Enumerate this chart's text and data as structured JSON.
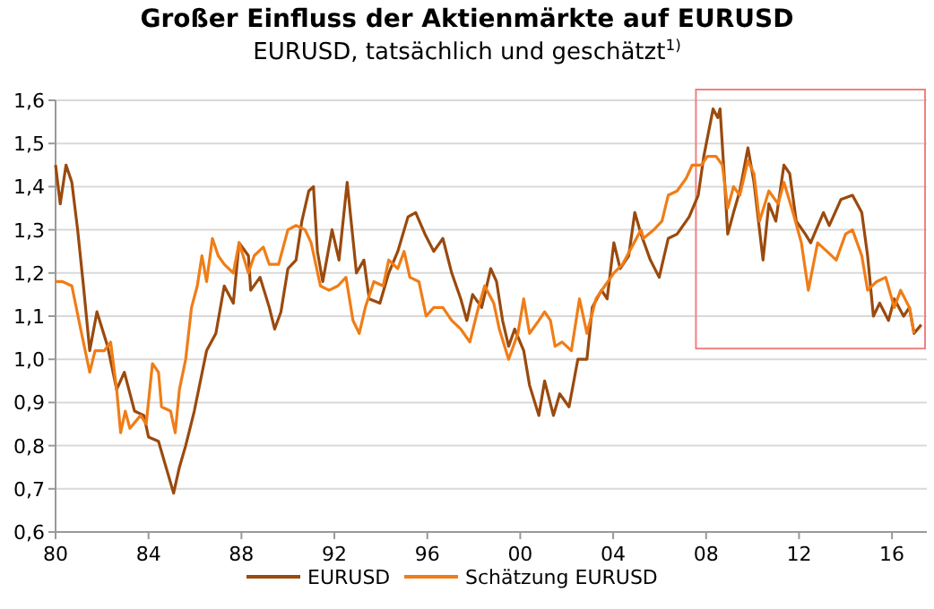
{
  "chart_data": {
    "type": "line",
    "title": "Großer Einfluss der Aktienmärkte auf EURUSD",
    "subtitle": "EURUSD, tatsächlich und geschätzt$^{1)}$",
    "xlim": [
      1980,
      2017.5
    ],
    "xticks": [
      {
        "value": 1980,
        "label": "80"
      },
      {
        "value": 1984,
        "label": "84"
      },
      {
        "value": 1988,
        "label": "88"
      },
      {
        "value": 1992,
        "label": "92"
      },
      {
        "value": 1996,
        "label": "96"
      },
      {
        "value": 2000,
        "label": "00"
      },
      {
        "value": 2004,
        "label": "04"
      },
      {
        "value": 2008,
        "label": "08"
      },
      {
        "value": 2012,
        "label": "12"
      },
      {
        "value": 2016,
        "label": "16"
      }
    ],
    "ylim": [
      0.6,
      1.6
    ],
    "yticks": [
      {
        "value": 0.6,
        "label": "0,6"
      },
      {
        "value": 0.7,
        "label": "0,7"
      },
      {
        "value": 0.8,
        "label": "0,8"
      },
      {
        "value": 0.9,
        "label": "0,9"
      },
      {
        "value": 1.0,
        "label": "1,0"
      },
      {
        "value": 1.1,
        "label": "1,1"
      },
      {
        "value": 1.2,
        "label": "1,2"
      },
      {
        "value": 1.3,
        "label": "1,3"
      },
      {
        "value": 1.4,
        "label": "1,4"
      },
      {
        "value": 1.5,
        "label": "1,5"
      },
      {
        "value": 1.6,
        "label": "1,6"
      }
    ],
    "grid": "y",
    "legend": "bottom",
    "line_style": "solid",
    "marker": "none",
    "series": [
      {
        "name": "EURUSD",
        "color": "#9a4a0e",
        "x": [
          1980,
          1980.2,
          1980.45,
          1980.7,
          1980.95,
          1981.2,
          1981.47,
          1981.78,
          1982.24,
          1982.63,
          1982.96,
          1983.4,
          1983.8,
          1984,
          1984.43,
          1984.7,
          1985.08,
          1985.33,
          1985.6,
          1985.97,
          1986.5,
          1986.9,
          1987.26,
          1987.65,
          1987.9,
          1988.3,
          1988.4,
          1988.8,
          1989.2,
          1989.43,
          1989.7,
          1990,
          1990.35,
          1990.6,
          1990.9,
          1991.1,
          1991.27,
          1991.5,
          1991.9,
          1992.2,
          1992.55,
          1992.95,
          1993.27,
          1993.5,
          1993.96,
          1994.34,
          1994.73,
          1995.17,
          1995.5,
          1995.9,
          1996.28,
          1996.67,
          1997.05,
          1997.44,
          1997.7,
          1997.95,
          1998.34,
          1998.73,
          1998.98,
          1999.24,
          1999.5,
          1999.76,
          2000.15,
          2000.4,
          2000.8,
          2001.05,
          2001.43,
          2001.7,
          2002.1,
          2002.48,
          2002.87,
          2003.1,
          2003.5,
          2003.74,
          2004.03,
          2004.3,
          2004.67,
          2004.93,
          2005.2,
          2005.6,
          2005.98,
          2006.37,
          2006.75,
          2007.27,
          2007.66,
          2007.9,
          2008.3,
          2008.5,
          2008.6,
          2008.8,
          2008.93,
          2009.18,
          2009.45,
          2009.8,
          2010.06,
          2010.45,
          2010.7,
          2011,
          2011.35,
          2011.6,
          2011.88,
          2012.27,
          2012.5,
          2013.05,
          2013.3,
          2013.8,
          2014.3,
          2014.7,
          2014.95,
          2015.2,
          2015.47,
          2015.85,
          2016.1,
          2016.5,
          2016.75,
          2016.95,
          2017.26
        ],
        "values": [
          1.45,
          1.36,
          1.45,
          1.41,
          1.3,
          1.17,
          1.02,
          1.11,
          1.03,
          0.93,
          0.97,
          0.88,
          0.87,
          0.82,
          0.81,
          0.76,
          0.69,
          0.75,
          0.8,
          0.88,
          1.02,
          1.06,
          1.17,
          1.13,
          1.27,
          1.24,
          1.16,
          1.19,
          1.12,
          1.07,
          1.11,
          1.21,
          1.23,
          1.32,
          1.39,
          1.4,
          1.25,
          1.18,
          1.3,
          1.23,
          1.41,
          1.2,
          1.23,
          1.14,
          1.13,
          1.2,
          1.25,
          1.33,
          1.34,
          1.29,
          1.25,
          1.28,
          1.2,
          1.14,
          1.09,
          1.15,
          1.12,
          1.21,
          1.18,
          1.09,
          1.03,
          1.07,
          1.02,
          0.94,
          0.87,
          0.95,
          0.87,
          0.92,
          0.89,
          1.0,
          1.0,
          1.12,
          1.16,
          1.14,
          1.27,
          1.21,
          1.24,
          1.34,
          1.29,
          1.23,
          1.19,
          1.28,
          1.29,
          1.33,
          1.38,
          1.47,
          1.58,
          1.56,
          1.58,
          1.41,
          1.29,
          1.34,
          1.39,
          1.49,
          1.41,
          1.23,
          1.36,
          1.32,
          1.45,
          1.43,
          1.32,
          1.29,
          1.27,
          1.34,
          1.31,
          1.37,
          1.38,
          1.34,
          1.24,
          1.1,
          1.13,
          1.09,
          1.14,
          1.1,
          1.12,
          1.06,
          1.08
        ]
      },
      {
        "name": "Schätzung EURUSD",
        "color": "#f07d17",
        "x": [
          1980,
          1980.3,
          1980.7,
          1981.08,
          1981.47,
          1981.7,
          1982.1,
          1982.37,
          1982.63,
          1982.8,
          1983,
          1983.2,
          1983.66,
          1983.9,
          1984.17,
          1984.43,
          1984.56,
          1984.95,
          1985.15,
          1985.33,
          1985.6,
          1985.85,
          1986.1,
          1986.3,
          1986.5,
          1986.75,
          1987,
          1987.26,
          1987.65,
          1987.9,
          1988.3,
          1988.55,
          1988.94,
          1989.2,
          1989.6,
          1990,
          1990.35,
          1990.74,
          1991,
          1991.4,
          1991.77,
          1992.15,
          1992.5,
          1992.8,
          1993.07,
          1993.33,
          1993.7,
          1994.1,
          1994.34,
          1994.73,
          1995,
          1995.25,
          1995.64,
          1995.95,
          1996.28,
          1996.67,
          1997.05,
          1997.44,
          1997.83,
          1998.2,
          1998.47,
          1998.86,
          1999.1,
          1999.5,
          1999.9,
          2000.15,
          2000.4,
          2000.8,
          2001.05,
          2001.3,
          2001.5,
          2001.8,
          2002.2,
          2002.55,
          2002.87,
          2003.26,
          2003.64,
          2004.03,
          2004.4,
          2004.8,
          2005.2,
          2005.3,
          2005.75,
          2006.1,
          2006.37,
          2006.75,
          2007.15,
          2007.4,
          2007.8,
          2008.05,
          2008.43,
          2008.7,
          2008.93,
          2009.18,
          2009.45,
          2009.8,
          2010.06,
          2010.3,
          2010.7,
          2011.1,
          2011.35,
          2011.74,
          2012.1,
          2012.4,
          2012.8,
          2013.2,
          2013.6,
          2014,
          2014.3,
          2014.7,
          2014.95,
          2015.34,
          2015.73,
          2016.1,
          2016.37,
          2016.75,
          2016.95
        ],
        "values": [
          1.18,
          1.18,
          1.17,
          1.07,
          0.97,
          1.02,
          1.02,
          1.04,
          0.93,
          0.83,
          0.88,
          0.84,
          0.87,
          0.85,
          0.99,
          0.97,
          0.89,
          0.88,
          0.83,
          0.93,
          1.0,
          1.12,
          1.17,
          1.24,
          1.18,
          1.28,
          1.24,
          1.22,
          1.2,
          1.27,
          1.2,
          1.24,
          1.26,
          1.22,
          1.22,
          1.3,
          1.31,
          1.3,
          1.27,
          1.17,
          1.16,
          1.17,
          1.19,
          1.09,
          1.06,
          1.12,
          1.18,
          1.17,
          1.23,
          1.21,
          1.25,
          1.19,
          1.18,
          1.1,
          1.12,
          1.12,
          1.09,
          1.07,
          1.04,
          1.12,
          1.17,
          1.13,
          1.07,
          1.0,
          1.06,
          1.14,
          1.06,
          1.09,
          1.11,
          1.09,
          1.03,
          1.04,
          1.02,
          1.14,
          1.06,
          1.14,
          1.17,
          1.2,
          1.22,
          1.26,
          1.3,
          1.28,
          1.3,
          1.32,
          1.38,
          1.39,
          1.42,
          1.45,
          1.45,
          1.47,
          1.47,
          1.45,
          1.35,
          1.4,
          1.38,
          1.46,
          1.43,
          1.32,
          1.39,
          1.36,
          1.41,
          1.34,
          1.27,
          1.16,
          1.27,
          1.25,
          1.23,
          1.29,
          1.3,
          1.24,
          1.16,
          1.18,
          1.19,
          1.12,
          1.16,
          1.12,
          1.06
        ]
      }
    ]
  }
}
